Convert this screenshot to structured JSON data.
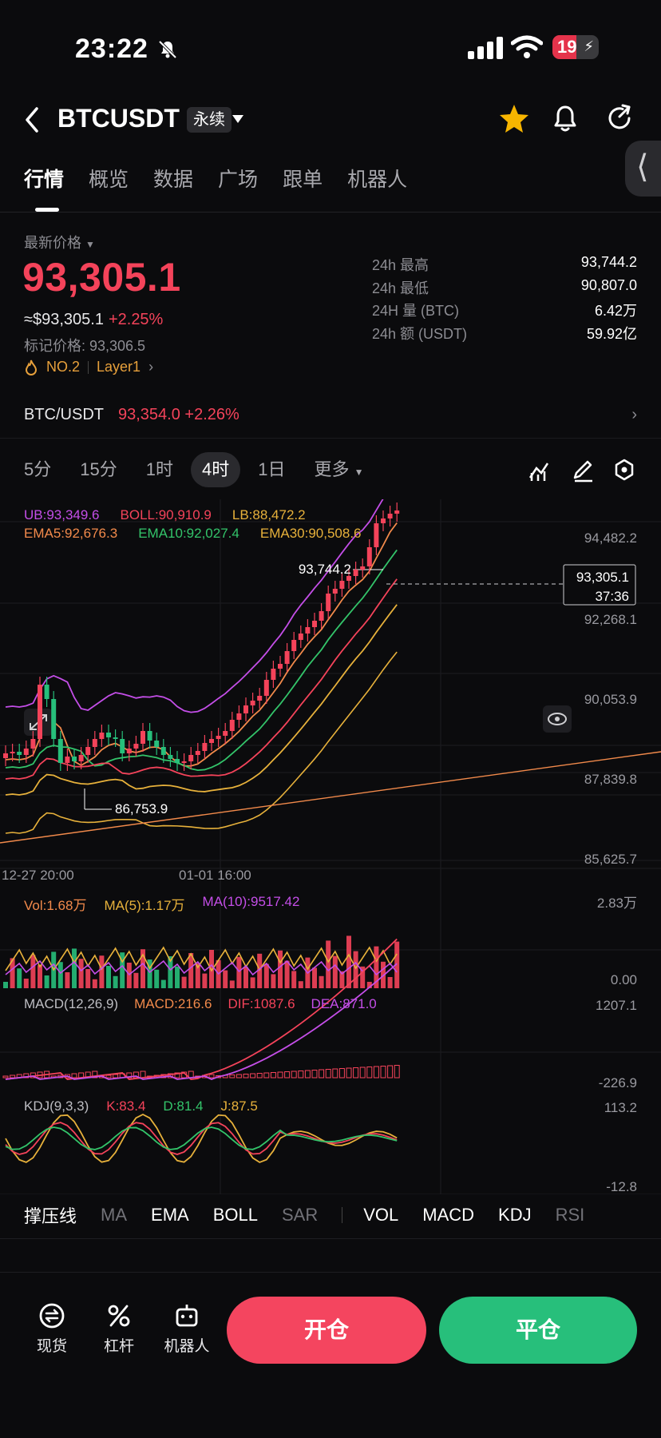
{
  "status_bar": {
    "time": "23:22",
    "battery": "19"
  },
  "header": {
    "symbol": "BTCUSDT",
    "contract_tag": "永续"
  },
  "tabs": [
    "行情",
    "概览",
    "数据",
    "广场",
    "跟单",
    "机器人"
  ],
  "price": {
    "label": "最新价格",
    "last": "93,305.1",
    "usd": "≈$93,305.1",
    "change": "+2.25%",
    "mark": "标记价格: 93,306.5",
    "rank": "NO.2",
    "sector": "Layer1"
  },
  "stats": [
    {
      "k": "24h  最高",
      "v": "93,744.2"
    },
    {
      "k": "24h  最低",
      "v": "90,807.0"
    },
    {
      "k": "24H  量 (BTC)",
      "v": "6.42万"
    },
    {
      "k": "24h  额 (USDT)",
      "v": "59.92亿"
    }
  ],
  "spot": {
    "pair": "BTC/USDT",
    "price": "93,354.0",
    "change": "+2.26%"
  },
  "intervals": [
    "5分",
    "15分",
    "1时",
    "4时",
    "1日",
    "更多"
  ],
  "chart": {
    "indicators_line1": {
      "ub": "UB:93,349.6",
      "boll": "BOLL:90,910.9",
      "lb": "LB:88,472.2"
    },
    "indicators_line2": {
      "ema5": "EMA5:92,676.3",
      "ema10": "EMA10:92,027.4",
      "ema30": "EMA30:90,508.6"
    },
    "yaxis": [
      "94,482.2",
      "92,268.1",
      "90,053.9",
      "87,839.8",
      "85,625.7"
    ],
    "high_label": "93,744.2",
    "low_label": "86,753.9",
    "current_box": {
      "price": "93,305.1",
      "countdown": "37:36"
    },
    "xaxis": [
      "12-27 20:00",
      "01-01 16:00"
    ],
    "vol": {
      "vol": "Vol:1.68万",
      "ma5": "MA(5):1.17万",
      "ma10": "MA(10):9517.42",
      "top": "2.83万",
      "bottom": "0.00"
    },
    "macd": {
      "name": "MACD(12,26,9)",
      "macd": "MACD:216.6",
      "dif": "DIF:1087.6",
      "dea": "DEA:871.0",
      "top": "1207.1",
      "bottom": "-226.9"
    },
    "kdj": {
      "name": "KDJ(9,3,3)",
      "k": "K:83.4",
      "d": "D:81.4",
      "j": "J:87.5",
      "top": "113.2",
      "bottom": "-12.8"
    }
  },
  "indicator_tabs": {
    "main": [
      "撑压线",
      "MA",
      "EMA",
      "BOLL",
      "SAR"
    ],
    "sub": [
      "VOL",
      "MACD",
      "KDJ",
      "RSI"
    ]
  },
  "bottom": {
    "spot": "现货",
    "leverage": "杠杆",
    "bot": "机器人",
    "open": "开仓",
    "close": "平仓"
  },
  "colors": {
    "up": "#f4435a",
    "down": "#27bf7b",
    "accent_star": "#f7b500"
  }
}
